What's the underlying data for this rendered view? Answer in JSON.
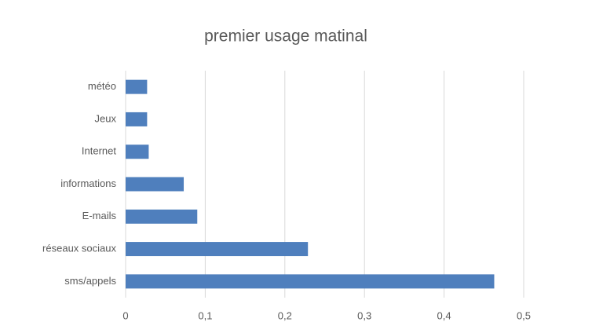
{
  "chart_data": {
    "type": "barh",
    "title": "premier usage matinal",
    "categories": [
      "météo",
      "Jeux",
      "Internet",
      "informations",
      "E-mails",
      "réseaux sociaux",
      "sms/appels"
    ],
    "values": [
      0.027,
      0.027,
      0.029,
      0.073,
      0.09,
      0.229,
      0.463
    ],
    "color": "#4f7fbd",
    "xlim": [
      0,
      0.5
    ],
    "xticks": [
      0,
      {
        "value": 0.1,
        "label": "0,1"
      },
      {
        "value": 0.2,
        "label": "0,2"
      },
      {
        "value": 0.3,
        "label": "0,3"
      },
      {
        "value": 0.4,
        "label": "0,4"
      },
      {
        "value": 0.5,
        "label": "0,5"
      }
    ],
    "grid": true
  }
}
